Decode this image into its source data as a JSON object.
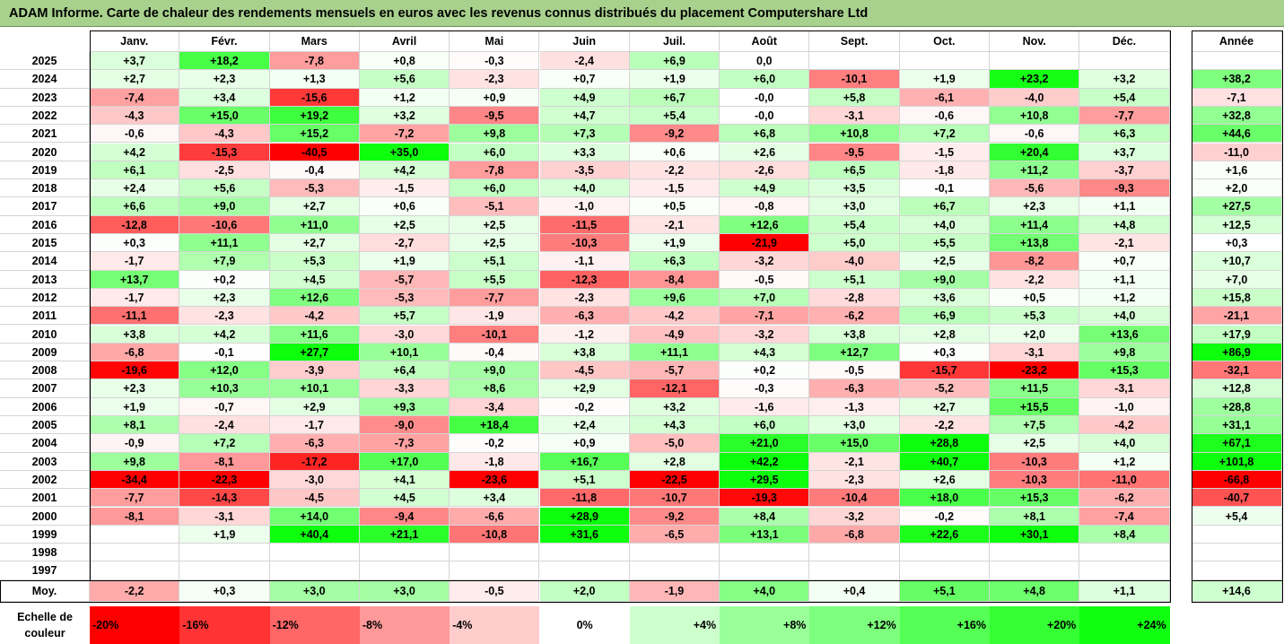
{
  "title": "ADAM Informe. Carte de chaleur des rendements mensuels en euros avec les revenus connus distribués du placement Computershare Ltd",
  "chart_data": {
    "type": "heatmap",
    "title": "ADAM Informe. Carte de chaleur des rendements mensuels en euros avec les revenus connus distribués du placement Computershare Ltd",
    "columns": [
      "Janv.",
      "Févr.",
      "Mars",
      "Avril",
      "Mai",
      "Juin",
      "Juil.",
      "Août",
      "Sept.",
      "Oct.",
      "Nov.",
      "Déc."
    ],
    "year_column_label": "Année",
    "rows": [
      {
        "year": "2025",
        "values": [
          "+3,7",
          "+18,2",
          "-7,8",
          "+0,8",
          "-0,3",
          "-2,4",
          "+6,9",
          "0,0",
          "",
          "",
          "",
          ""
        ],
        "annual": ""
      },
      {
        "year": "2024",
        "values": [
          "+2,7",
          "+2,3",
          "+1,3",
          "+5,6",
          "-2,3",
          "+0,7",
          "+1,9",
          "+6,0",
          "-10,1",
          "+1,9",
          "+23,2",
          "+3,2"
        ],
        "annual": "+38,2"
      },
      {
        "year": "2023",
        "values": [
          "-7,4",
          "+3,4",
          "-15,6",
          "+1,2",
          "+0,9",
          "+4,9",
          "+6,7",
          "-0,0",
          "+5,8",
          "-6,1",
          "-4,0",
          "+5,4"
        ],
        "annual": "-7,1"
      },
      {
        "year": "2022",
        "values": [
          "-4,3",
          "+15,0",
          "+19,2",
          "+3,2",
          "-9,5",
          "+4,7",
          "+5,4",
          "-0,0",
          "-3,1",
          "-0,6",
          "+10,8",
          "-7,7"
        ],
        "annual": "+32,8"
      },
      {
        "year": "2021",
        "values": [
          "-0,6",
          "-4,3",
          "+15,2",
          "-7,2",
          "+9,8",
          "+7,3",
          "-9,2",
          "+6,8",
          "+10,8",
          "+7,2",
          "-0,6",
          "+6,3"
        ],
        "annual": "+44,6"
      },
      {
        "year": "2020",
        "values": [
          "+4,2",
          "-15,3",
          "-40,5",
          "+35,0",
          "+6,0",
          "+3,3",
          "+0,6",
          "+2,6",
          "-9,5",
          "-1,5",
          "+20,4",
          "+3,7"
        ],
        "annual": "-11,0"
      },
      {
        "year": "2019",
        "values": [
          "+6,1",
          "-2,5",
          "-0,4",
          "+4,2",
          "-7,8",
          "-3,5",
          "-2,2",
          "-2,6",
          "+6,5",
          "-1,8",
          "+11,2",
          "-3,7"
        ],
        "annual": "+1,6"
      },
      {
        "year": "2018",
        "values": [
          "+2,4",
          "+5,6",
          "-5,3",
          "-1,5",
          "+6,0",
          "+4,0",
          "-1,5",
          "+4,9",
          "+3,5",
          "-0,1",
          "-5,6",
          "-9,3"
        ],
        "annual": "+2,0"
      },
      {
        "year": "2017",
        "values": [
          "+6,6",
          "+9,0",
          "+2,7",
          "+0,6",
          "-5,1",
          "-1,0",
          "+0,5",
          "-0,8",
          "+3,0",
          "+6,7",
          "+2,3",
          "+1,1"
        ],
        "annual": "+27,5"
      },
      {
        "year": "2016",
        "values": [
          "-12,8",
          "-10,6",
          "+11,0",
          "+2,5",
          "+2,5",
          "-11,5",
          "-2,1",
          "+12,6",
          "+5,4",
          "+4,0",
          "+11,4",
          "+4,8"
        ],
        "annual": "+12,5"
      },
      {
        "year": "2015",
        "values": [
          "+0,3",
          "+11,1",
          "+2,7",
          "-2,7",
          "+2,5",
          "-10,3",
          "+1,9",
          "-21,9",
          "+5,0",
          "+5,5",
          "+13,8",
          "-2,1"
        ],
        "annual": "+0,3"
      },
      {
        "year": "2014",
        "values": [
          "-1,7",
          "+7,9",
          "+5,3",
          "+1,9",
          "+5,1",
          "-1,1",
          "+6,3",
          "-3,2",
          "-4,0",
          "+2,5",
          "-8,2",
          "+0,7"
        ],
        "annual": "+10,7"
      },
      {
        "year": "2013",
        "values": [
          "+13,7",
          "+0,2",
          "+4,5",
          "-5,7",
          "+5,5",
          "-12,3",
          "-8,4",
          "-0,5",
          "+5,1",
          "+9,0",
          "-2,2",
          "+1,1"
        ],
        "annual": "+7,0"
      },
      {
        "year": "2012",
        "values": [
          "-1,7",
          "+2,3",
          "+12,6",
          "-5,3",
          "-7,7",
          "-2,3",
          "+9,6",
          "+7,0",
          "-2,8",
          "+3,6",
          "+0,5",
          "+1,2"
        ],
        "annual": "+15,8"
      },
      {
        "year": "2011",
        "values": [
          "-11,1",
          "-2,3",
          "-4,2",
          "+5,7",
          "-1,9",
          "-6,3",
          "-4,2",
          "-7,1",
          "-6,2",
          "+6,9",
          "+5,3",
          "+4,0"
        ],
        "annual": "-21,1"
      },
      {
        "year": "2010",
        "values": [
          "+3,8",
          "+4,2",
          "+11,6",
          "-3,0",
          "-10,1",
          "-1,2",
          "-4,9",
          "-3,2",
          "+3,8",
          "+2,8",
          "+2,0",
          "+13,6"
        ],
        "annual": "+17,9"
      },
      {
        "year": "2009",
        "values": [
          "-6,8",
          "-0,1",
          "+27,7",
          "+10,1",
          "-0,4",
          "+3,8",
          "+11,1",
          "+4,3",
          "+12,7",
          "+0,3",
          "-3,1",
          "+9,8"
        ],
        "annual": "+86,9"
      },
      {
        "year": "2008",
        "values": [
          "-19,6",
          "+12,0",
          "-3,9",
          "+6,4",
          "+9,0",
          "-4,5",
          "-5,7",
          "+0,2",
          "-0,5",
          "-15,7",
          "-23,2",
          "+15,3"
        ],
        "annual": "-32,1"
      },
      {
        "year": "2007",
        "values": [
          "+2,3",
          "+10,3",
          "+10,1",
          "-3,3",
          "+8,6",
          "+2,9",
          "-12,1",
          "-0,3",
          "-6,3",
          "-5,2",
          "+11,5",
          "-3,1"
        ],
        "annual": "+12,8"
      },
      {
        "year": "2006",
        "values": [
          "+1,9",
          "-0,7",
          "+2,9",
          "+9,3",
          "-3,4",
          "-0,2",
          "+3,2",
          "-1,6",
          "-1,3",
          "+2,7",
          "+15,5",
          "-1,0"
        ],
        "annual": "+28,8"
      },
      {
        "year": "2005",
        "values": [
          "+8,1",
          "-2,4",
          "-1,7",
          "-9,0",
          "+18,4",
          "+2,4",
          "+4,3",
          "+6,0",
          "+3,0",
          "-2,2",
          "+7,5",
          "-4,2"
        ],
        "annual": "+31,1"
      },
      {
        "year": "2004",
        "values": [
          "-0,9",
          "+7,2",
          "-6,3",
          "-7,3",
          "-0,2",
          "+0,9",
          "-5,0",
          "+21,0",
          "+15,0",
          "+28,8",
          "+2,5",
          "+4,0"
        ],
        "annual": "+67,1"
      },
      {
        "year": "2003",
        "values": [
          "+9,8",
          "-8,1",
          "-17,2",
          "+17,0",
          "-1,8",
          "+16,7",
          "+2,8",
          "+42,2",
          "-2,1",
          "+40,7",
          "-10,3",
          "+1,2"
        ],
        "annual": "+101,8"
      },
      {
        "year": "2002",
        "values": [
          "-34,4",
          "-22,3",
          "-3,0",
          "+4,1",
          "-23,6",
          "+5,1",
          "-22,5",
          "+29,5",
          "-2,3",
          "+2,6",
          "-10,3",
          "-11,0"
        ],
        "annual": "-66,8"
      },
      {
        "year": "2001",
        "values": [
          "-7,7",
          "-14,3",
          "-4,5",
          "+4,5",
          "+3,4",
          "-11,8",
          "-10,7",
          "-19,3",
          "-10,4",
          "+18,0",
          "+15,3",
          "-6,2"
        ],
        "annual": "-40,7"
      },
      {
        "year": "2000",
        "values": [
          "-8,1",
          "-3,1",
          "+14,0",
          "-9,4",
          "-6,6",
          "+28,9",
          "-9,2",
          "+8,4",
          "-3,2",
          "-0,2",
          "+8,1",
          "-7,4"
        ],
        "annual": "+5,4"
      },
      {
        "year": "1999",
        "values": [
          "",
          "+1,9",
          "+40,4",
          "+21,1",
          "-10,8",
          "+31,6",
          "-6,5",
          "+13,1",
          "-6,8",
          "+22,6",
          "+30,1",
          "+8,4"
        ],
        "annual": ""
      },
      {
        "year": "1998",
        "values": [
          "",
          "",
          "",
          "",
          "",
          "",
          "",
          "",
          "",
          "",
          "",
          ""
        ],
        "annual": ""
      },
      {
        "year": "1997",
        "values": [
          "",
          "",
          "",
          "",
          "",
          "",
          "",
          "",
          "",
          "",
          "",
          ""
        ],
        "annual": ""
      }
    ],
    "average": {
      "label": "Moy.",
      "values": [
        "-2,2",
        "+0,3",
        "+3,0",
        "+3,0",
        "-0,5",
        "+2,0",
        "-1,9",
        "+4,0",
        "+0,4",
        "+5,1",
        "+4,8",
        "+1,1"
      ],
      "annual": "+14,6"
    },
    "color_scale": {
      "label_line1": "Echelle de",
      "label_line2": "couleur",
      "steps": [
        {
          "label": "-20%",
          "value": -20,
          "color": "#ff0000"
        },
        {
          "label": "-16%",
          "value": -16,
          "color": "#ff3333"
        },
        {
          "label": "-12%",
          "value": -12,
          "color": "#ff6666"
        },
        {
          "label": "-8%",
          "value": -8,
          "color": "#ff9999"
        },
        {
          "label": "-4%",
          "value": -4,
          "color": "#ffcccc"
        },
        {
          "label": "0%",
          "value": 0,
          "color": "#ffffff"
        },
        {
          "label": "+4%",
          "value": 4,
          "color": "#ccffcc"
        },
        {
          "label": "+8%",
          "value": 8,
          "color": "#99ff99"
        },
        {
          "label": "+12%",
          "value": 12,
          "color": "#7dff7d"
        },
        {
          "label": "+16%",
          "value": 16,
          "color": "#55ff55"
        },
        {
          "label": "+20%",
          "value": 20,
          "color": "#33ff33"
        },
        {
          "label": "+24%",
          "value": 24,
          "color": "#11ff11"
        }
      ]
    }
  }
}
